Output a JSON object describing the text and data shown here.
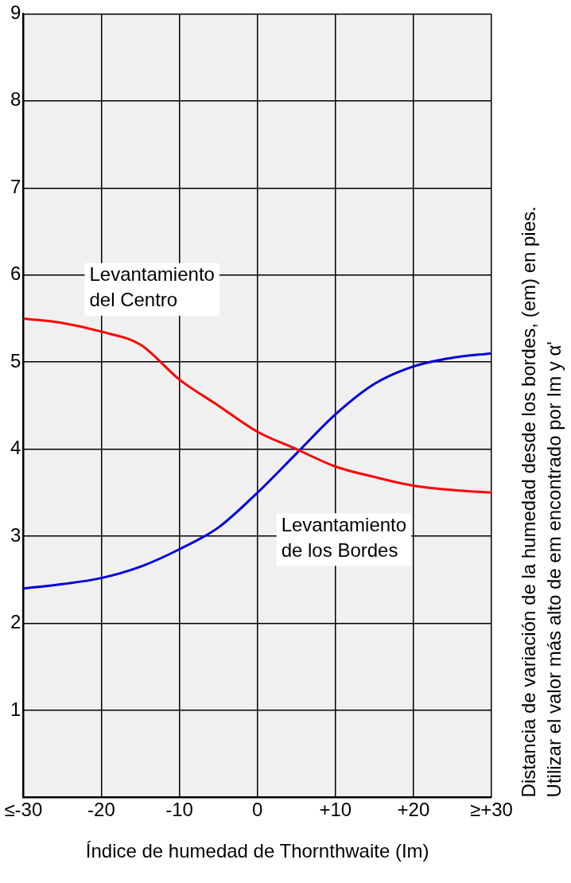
{
  "chart_data": {
    "type": "line",
    "xlabel": "Índice de humedad de Thornthwaite (Im)",
    "ylabel": "Distancia de variación de la humedad desde los bordes, (em) en pies.",
    "annotations": [
      "Utilizar el valor más alto de em encontrado por Im y α'"
    ],
    "x": [
      -30,
      -25,
      -20,
      -15,
      -10,
      -5,
      0,
      5,
      10,
      15,
      20,
      25,
      30
    ],
    "xlim": [
      -30,
      30
    ],
    "xticks": [
      {
        "value": -30,
        "label": "≤-30"
      },
      -20,
      -10,
      0,
      {
        "value": 10,
        "label": "+10"
      },
      {
        "value": 20,
        "label": "+20"
      },
      {
        "value": 30,
        "label": "≥+30"
      }
    ],
    "ylim": [
      0,
      9
    ],
    "yticks": [
      {
        "value": 0,
        "label": null
      },
      1,
      2,
      3,
      4,
      5,
      6,
      7,
      8,
      9
    ],
    "grid": true,
    "legend": false,
    "marker": "none",
    "line_style": "solid",
    "series": [
      {
        "name": "Levantamiento del Centro",
        "color": "#ff0000",
        "values": [
          5.5,
          5.45,
          5.35,
          5.2,
          4.8,
          4.5,
          4.2,
          4.0,
          3.8,
          3.68,
          3.58,
          3.53,
          3.5
        ]
      },
      {
        "name": "Levantamiento de los Bordes",
        "color": "#0000dd",
        "values": [
          2.4,
          2.45,
          2.52,
          2.65,
          2.85,
          3.1,
          3.5,
          3.95,
          4.4,
          4.75,
          4.95,
          5.05,
          5.1
        ]
      }
    ]
  }
}
